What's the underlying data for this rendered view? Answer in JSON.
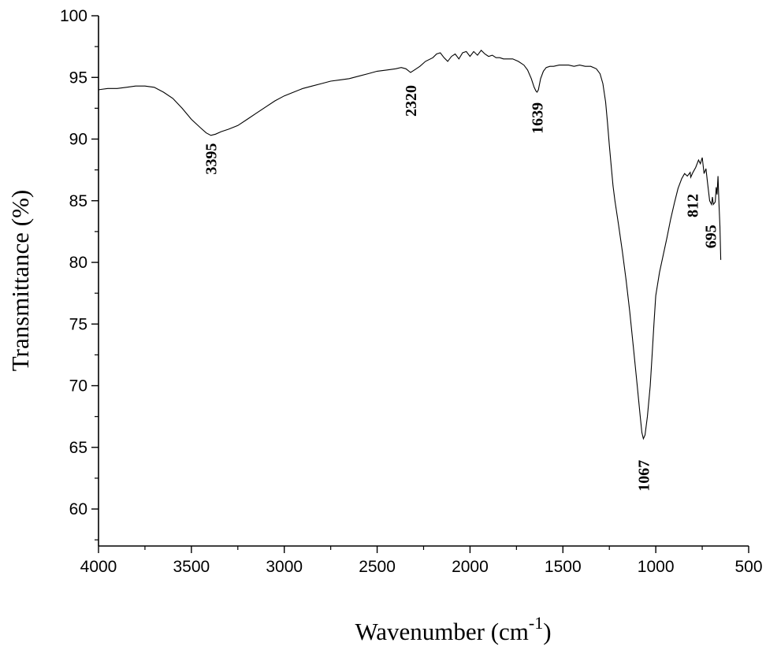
{
  "chart_data": {
    "type": "line",
    "title": "",
    "xlabel": "Wavenumber (cm",
    "xlabel_sup": "-1",
    "xlabel_close": ")",
    "ylabel": "Transmittance (%)",
    "xlim": [
      4000,
      500
    ],
    "ylim": [
      57,
      100
    ],
    "x_reversed": true,
    "grid": false,
    "x_ticks": [
      4000,
      3500,
      3000,
      2500,
      2000,
      1500,
      1000,
      500
    ],
    "x_tick_labels": [
      "4000",
      "3500",
      "3000",
      "2500",
      "2000",
      "1500",
      "1000",
      "500"
    ],
    "y_ticks": [
      60,
      65,
      70,
      75,
      80,
      85,
      90,
      95,
      100
    ],
    "y_tick_labels": [
      "60",
      "65",
      "70",
      "75",
      "80",
      "85",
      "90",
      "95",
      "100"
    ],
    "series": [
      {
        "x": [
          4000,
          3950,
          3900,
          3850,
          3800,
          3750,
          3700,
          3650,
          3600,
          3550,
          3500,
          3450,
          3420,
          3395,
          3370,
          3340,
          3300,
          3250,
          3200,
          3150,
          3100,
          3050,
          3000,
          2950,
          2900,
          2850,
          2800,
          2750,
          2700,
          2650,
          2600,
          2550,
          2500,
          2450,
          2400,
          2370,
          2345,
          2320,
          2300,
          2270,
          2240,
          2200,
          2180,
          2160,
          2140,
          2120,
          2100,
          2080,
          2060,
          2040,
          2020,
          2000,
          1980,
          1960,
          1940,
          1920,
          1900,
          1880,
          1860,
          1840,
          1820,
          1800,
          1770,
          1740,
          1710,
          1690,
          1670,
          1655,
          1645,
          1639,
          1632,
          1620,
          1605,
          1590,
          1570,
          1550,
          1520,
          1500,
          1470,
          1440,
          1410,
          1380,
          1350,
          1320,
          1300,
          1285,
          1270,
          1260,
          1250,
          1240,
          1230,
          1220,
          1200,
          1180,
          1160,
          1140,
          1120,
          1100,
          1085,
          1075,
          1067,
          1058,
          1045,
          1030,
          1020,
          1010,
          1000,
          980,
          960,
          940,
          920,
          900,
          880,
          860,
          845,
          830,
          815,
          812,
          800,
          785,
          770,
          760,
          750,
          740,
          730,
          720,
          710,
          700,
          695,
          690,
          680,
          675,
          670,
          665,
          660,
          655,
          650
        ],
        "y": [
          94.0,
          94.1,
          94.1,
          94.2,
          94.3,
          94.3,
          94.2,
          93.8,
          93.3,
          92.5,
          91.6,
          90.9,
          90.5,
          90.3,
          90.4,
          90.6,
          90.8,
          91.1,
          91.6,
          92.1,
          92.6,
          93.1,
          93.5,
          93.8,
          94.1,
          94.3,
          94.5,
          94.7,
          94.8,
          94.9,
          95.1,
          95.3,
          95.5,
          95.6,
          95.7,
          95.8,
          95.7,
          95.4,
          95.6,
          95.9,
          96.3,
          96.6,
          96.9,
          97.0,
          96.6,
          96.3,
          96.7,
          96.9,
          96.5,
          97.0,
          97.1,
          96.7,
          97.1,
          96.8,
          97.2,
          96.9,
          96.7,
          96.8,
          96.6,
          96.6,
          96.5,
          96.5,
          96.5,
          96.3,
          96.0,
          95.6,
          94.9,
          94.2,
          93.9,
          93.8,
          94.0,
          94.9,
          95.5,
          95.8,
          95.9,
          95.9,
          96.0,
          96.0,
          96.0,
          95.9,
          96.0,
          95.9,
          95.9,
          95.7,
          95.3,
          94.5,
          93.0,
          91.3,
          89.5,
          87.8,
          86.2,
          85.0,
          83.0,
          80.9,
          78.6,
          76.0,
          73.0,
          70.0,
          67.7,
          66.2,
          65.7,
          66.0,
          67.5,
          70.0,
          72.4,
          75.0,
          77.3,
          79.2,
          80.6,
          82.0,
          83.5,
          84.8,
          86.0,
          86.8,
          87.2,
          87.0,
          87.3,
          86.9,
          87.3,
          87.7,
          88.3,
          88.0,
          88.5,
          87.2,
          87.6,
          86.3,
          85.0,
          84.7,
          85.3,
          84.7,
          84.9,
          86.1,
          85.5,
          87.0,
          84.8,
          83.0,
          80.2
        ],
        "color": "#000000"
      }
    ],
    "annotations": [
      {
        "text": "3395",
        "x": 3395,
        "y": 88.4,
        "rotate": -90
      },
      {
        "text": "2320",
        "x": 2320,
        "y": 93.1,
        "rotate": -90
      },
      {
        "text": "1639",
        "x": 1639,
        "y": 91.7,
        "rotate": -90
      },
      {
        "text": "1067",
        "x": 1067,
        "y": 62.7,
        "rotate": -90
      },
      {
        "text": "812",
        "x": 803,
        "y": 84.6,
        "rotate": -90
      },
      {
        "text": "695",
        "x": 705,
        "y": 82.1,
        "rotate": -90
      }
    ]
  }
}
